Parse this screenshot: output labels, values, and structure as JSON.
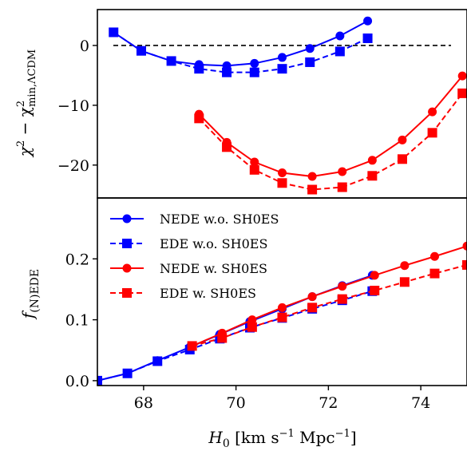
{
  "chart_data": [
    {
      "type": "line",
      "ylabel": "χ² − χ²min,ΛCDM",
      "ylabel_main": "χ",
      "ylabel_sup": "2",
      "ylabel_minus": " − χ",
      "ylabel_sup2": "2",
      "ylabel_sub2": "min,ΛCDM",
      "xlim": [
        67,
        75
      ],
      "ylim": [
        -25.5,
        6
      ],
      "y_ticks": [
        0,
        -10,
        -20
      ],
      "y_tick_labels": [
        "0",
        "−10",
        "−20"
      ],
      "reference_line": {
        "y": 0,
        "color": "#000000",
        "style": "dashed"
      },
      "series": [
        {
          "name": "NEDE w.o. SH0ES",
          "color": "#0000ff",
          "marker": "circle",
          "line": "solid",
          "x": [
            67.35,
            67.95,
            68.6,
            69.2,
            69.8,
            70.4,
            71.0,
            71.6,
            72.25,
            72.85
          ],
          "y": [
            2.2,
            -0.9,
            -2.6,
            -3.2,
            -3.4,
            -3.0,
            -2.0,
            -0.5,
            1.6,
            4.1
          ]
        },
        {
          "name": "EDE w.o. SH0ES",
          "color": "#0000ff",
          "marker": "square",
          "line": "dashed",
          "x": [
            67.35,
            67.95,
            68.6,
            69.2,
            69.8,
            70.4,
            71.0,
            71.6,
            72.25,
            72.85
          ],
          "y": [
            2.2,
            -0.9,
            -2.6,
            -3.9,
            -4.5,
            -4.5,
            -3.9,
            -2.8,
            -1.0,
            1.2
          ]
        },
        {
          "name": "NEDE w. SH0ES",
          "color": "#ff0000",
          "marker": "circle",
          "line": "solid",
          "x": [
            69.2,
            69.8,
            70.4,
            71.0,
            71.65,
            72.3,
            72.95,
            73.6,
            74.25,
            74.9
          ],
          "y": [
            -11.5,
            -16.2,
            -19.5,
            -21.3,
            -21.9,
            -21.1,
            -19.2,
            -15.8,
            -11.1,
            -5.1
          ]
        },
        {
          "name": "EDE w. SH0ES",
          "color": "#ff0000",
          "marker": "square",
          "line": "dashed",
          "x": [
            69.2,
            69.8,
            70.4,
            71.0,
            71.65,
            72.3,
            72.95,
            73.6,
            74.25,
            74.9
          ],
          "y": [
            -12.2,
            -17.0,
            -20.8,
            -23.0,
            -24.1,
            -23.7,
            -21.8,
            -19.0,
            -14.6,
            -8.0
          ]
        }
      ]
    },
    {
      "type": "line",
      "xlabel": "H0 [km s−1 Mpc−1]",
      "xlabel_main": "H",
      "xlabel_sub": "0",
      "xlabel_units_a": " [km s",
      "xlabel_sup_a": "−1",
      "xlabel_units_b": " Mpc",
      "xlabel_sup_b": "−1",
      "xlabel_units_c": "]",
      "ylabel": "f(N)EDE",
      "ylabel_main": "f",
      "ylabel_sub": "(N)EDE",
      "xlim": [
        67,
        75
      ],
      "ylim": [
        -0.008,
        0.3
      ],
      "x_ticks": [
        68,
        70,
        72,
        74
      ],
      "x_tick_labels": [
        "68",
        "70",
        "72",
        "74"
      ],
      "y_ticks": [
        0.0,
        0.1,
        0.2
      ],
      "y_tick_labels": [
        "0.0",
        "0.1",
        "0.2"
      ],
      "legend": "upper-left",
      "series": [
        {
          "name": "NEDE w.o. SH0ES",
          "color": "#0000ff",
          "marker": "circle",
          "line": "solid",
          "x": [
            67.0,
            67.65,
            68.3,
            69.0,
            69.65,
            70.3,
            71.0,
            71.65,
            72.3,
            72.95
          ],
          "y": [
            0.0,
            0.012,
            0.033,
            0.055,
            0.076,
            0.097,
            0.118,
            0.138,
            0.156,
            0.173
          ]
        },
        {
          "name": "EDE w.o. SH0ES",
          "color": "#0000ff",
          "marker": "square",
          "line": "dashed",
          "x": [
            67.0,
            67.65,
            68.3,
            69.0,
            69.65,
            70.3,
            71.0,
            71.65,
            72.3,
            72.95
          ],
          "y": [
            0.0,
            0.012,
            0.032,
            0.051,
            0.069,
            0.087,
            0.103,
            0.118,
            0.132,
            0.147
          ]
        },
        {
          "name": "NEDE w. SH0ES",
          "color": "#ff0000",
          "marker": "circle",
          "line": "solid",
          "x": [
            69.05,
            69.7,
            70.35,
            71.0,
            71.65,
            72.3,
            73.0,
            73.65,
            74.3,
            75.0
          ],
          "y": [
            0.057,
            0.078,
            0.1,
            0.12,
            0.138,
            0.155,
            0.173,
            0.189,
            0.204,
            0.221
          ]
        },
        {
          "name": "EDE w. SH0ES",
          "color": "#ff0000",
          "marker": "square",
          "line": "dashed",
          "x": [
            69.05,
            69.7,
            70.35,
            71.0,
            71.65,
            72.3,
            73.0,
            73.65,
            74.3,
            75.0
          ],
          "y": [
            0.057,
            0.07,
            0.088,
            0.104,
            0.12,
            0.134,
            0.148,
            0.162,
            0.176,
            0.19
          ]
        }
      ]
    }
  ]
}
